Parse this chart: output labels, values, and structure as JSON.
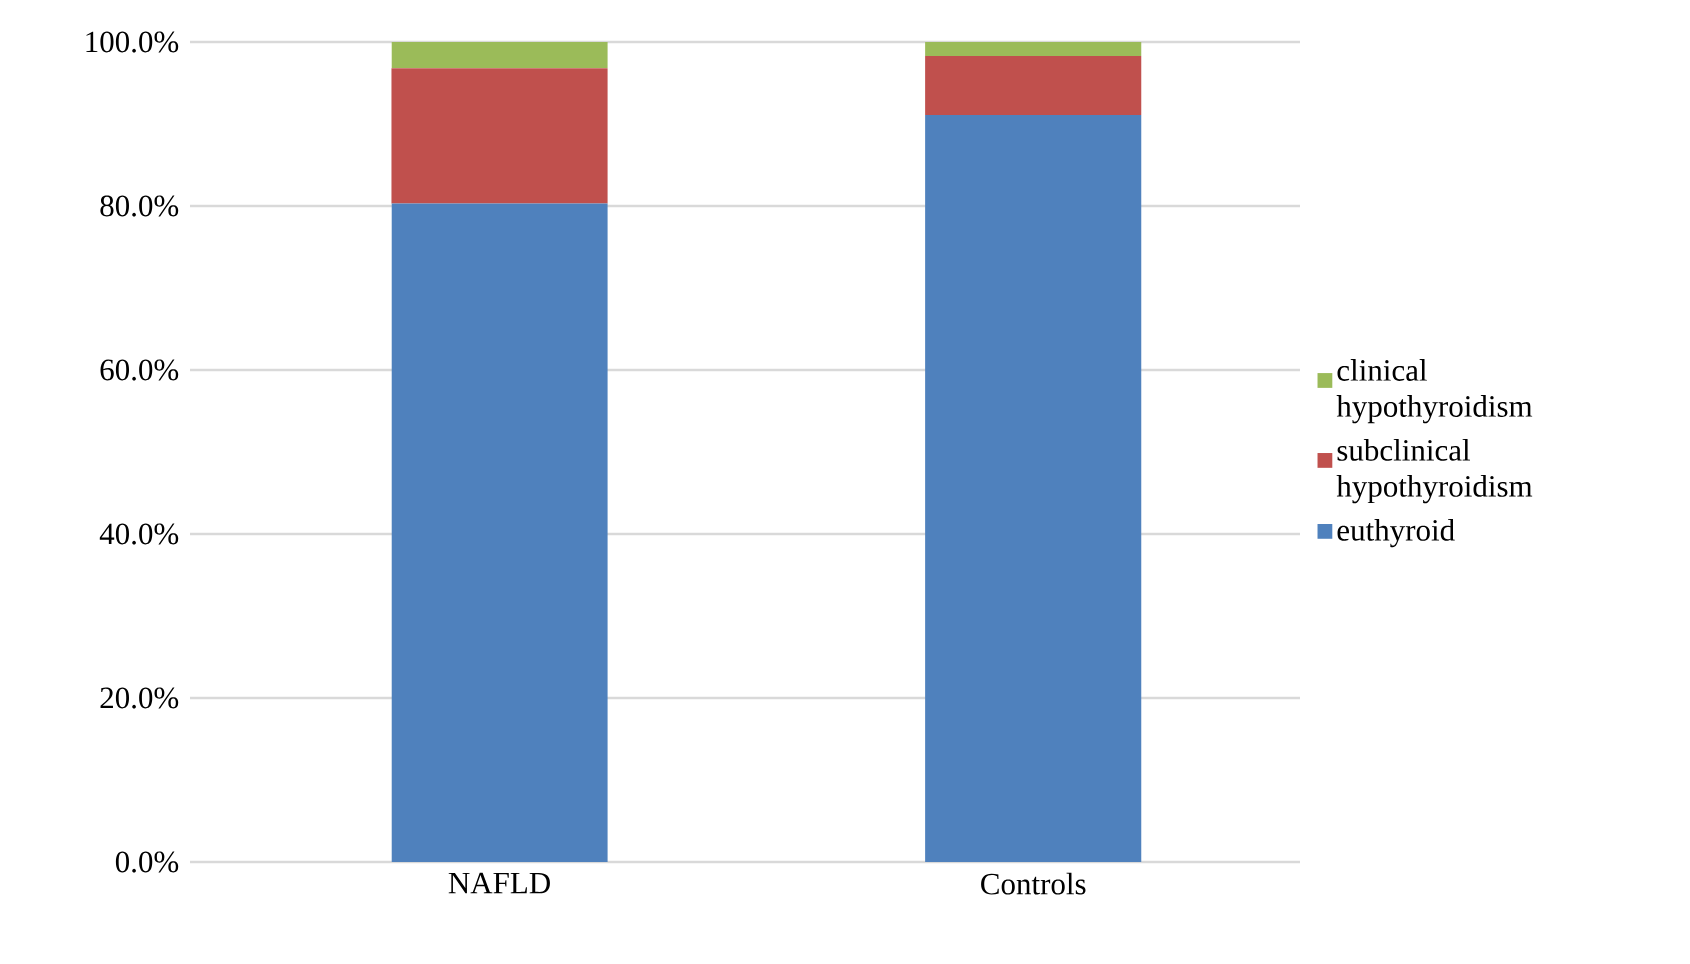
{
  "chart_data": {
    "type": "bar",
    "stacked": true,
    "categories": [
      "NAFLD",
      "Controls"
    ],
    "series": [
      {
        "name": "euthyroid",
        "color": "#4f81bd",
        "values": [
          80.3,
          91.1
        ]
      },
      {
        "name": "subclinical hypothyroidism",
        "color": "#c0504d",
        "values": [
          16.5,
          7.2
        ]
      },
      {
        "name": "clinical hypothyroidism",
        "color": "#9bbb59",
        "values": [
          3.2,
          1.7
        ]
      }
    ],
    "ylim": [
      0,
      100
    ],
    "yticks": [
      {
        "value": 0,
        "label": "0.0%"
      },
      {
        "value": 20,
        "label": "20.0%"
      },
      {
        "value": 40,
        "label": "40.0%"
      },
      {
        "value": 60,
        "label": "60.0%"
      },
      {
        "value": 80,
        "label": "80.0%"
      },
      {
        "value": 100,
        "label": "100.0%"
      }
    ],
    "grid": "y",
    "legend": "right"
  }
}
